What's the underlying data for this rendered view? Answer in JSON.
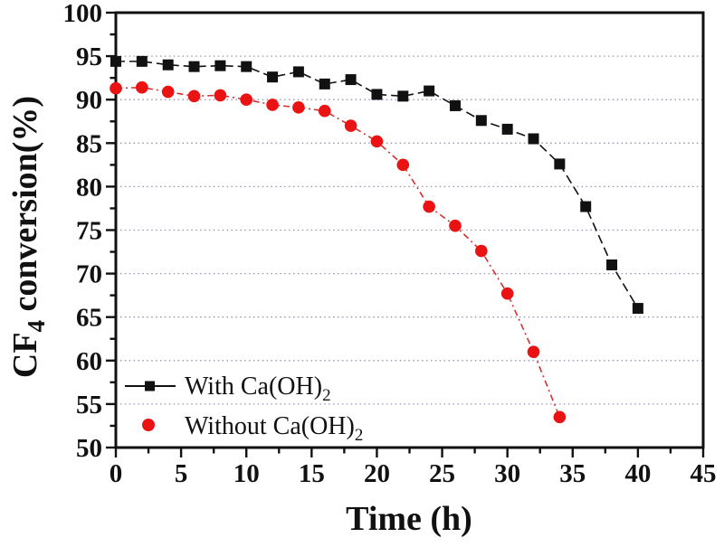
{
  "figure": {
    "background": "#ffffff",
    "frame_color": "#111111"
  },
  "chart_data": {
    "type": "line",
    "title": "",
    "xlabel": "Time (h)",
    "ylabel": "CF4 conversion(%)",
    "ylabel_parts": {
      "prefix": "CF",
      "subscript": "4",
      "suffix": " conversion(%)"
    },
    "xlim": [
      0,
      45
    ],
    "ylim": [
      50,
      100
    ],
    "x_major_ticks": [
      0,
      5,
      10,
      15,
      20,
      25,
      30,
      35,
      40,
      45
    ],
    "x_minor_ticks": [
      2.5,
      7.5,
      12.5,
      17.5,
      22.5,
      27.5,
      32.5,
      37.5,
      42.5
    ],
    "y_major_ticks": [
      50,
      55,
      60,
      65,
      70,
      75,
      80,
      85,
      90,
      95,
      100
    ],
    "y_minor_ticks": [
      52.5,
      57.5,
      62.5,
      67.5,
      72.5,
      77.5,
      82.5,
      87.5,
      92.5,
      97.5
    ],
    "grid": {
      "horizontal": true,
      "vertical": false,
      "at": [
        55,
        60,
        65,
        70,
        75,
        80,
        85,
        90,
        95
      ],
      "color": "#7272a0",
      "style": "dotted"
    },
    "legend_position": "lower-left",
    "series": [
      {
        "name": "With Ca(OH)2",
        "legend_parts": {
          "main": "With Ca(OH)",
          "subscript": "2"
        },
        "marker": "square",
        "marker_color": "#111111",
        "line_color": "#111111",
        "line_style": "dashed",
        "x": [
          0,
          2,
          4,
          6,
          8,
          10,
          12,
          14,
          16,
          18,
          20,
          22,
          24,
          26,
          28,
          30,
          32,
          34,
          36,
          38,
          40
        ],
        "y": [
          94.4,
          94.4,
          94.0,
          93.8,
          93.9,
          93.8,
          92.6,
          93.2,
          91.8,
          92.3,
          90.6,
          90.4,
          91.0,
          89.3,
          87.6,
          86.6,
          85.5,
          82.6,
          77.7,
          71.0,
          66.0
        ]
      },
      {
        "name": "Without Ca(OH)2",
        "legend_parts": {
          "main": "Without Ca(OH)",
          "subscript": "2"
        },
        "marker": "circle",
        "marker_color": "#ea1212",
        "line_color": "#d43030",
        "line_style": "dash-dot",
        "x": [
          0,
          2,
          4,
          6,
          8,
          10,
          12,
          14,
          16,
          18,
          20,
          22,
          24,
          26,
          28,
          30,
          32,
          34
        ],
        "y": [
          91.3,
          91.4,
          90.9,
          90.4,
          90.5,
          90.0,
          89.4,
          89.1,
          88.7,
          87.0,
          85.2,
          82.5,
          77.7,
          75.5,
          72.6,
          67.7,
          61.0,
          53.5
        ]
      }
    ]
  }
}
